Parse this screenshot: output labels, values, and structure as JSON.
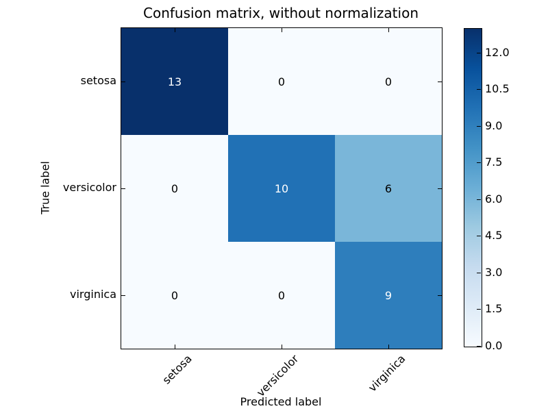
{
  "title": "Confusion matrix, without normalization",
  "axes": {
    "xlabel": "Predicted label",
    "ylabel": "True label",
    "x_tick_labels": [
      "setosa",
      "versicolor",
      "virginica"
    ],
    "y_tick_labels": [
      "setosa",
      "versicolor",
      "virginica"
    ]
  },
  "matrix": {
    "rows": [
      {
        "label": "setosa",
        "cells": [
          {
            "value": "13",
            "bg": "#08306b",
            "fg": "#ffffff"
          },
          {
            "value": "0",
            "bg": "#f7fbff",
            "fg": "#000000"
          },
          {
            "value": "0",
            "bg": "#f7fbff",
            "fg": "#000000"
          }
        ]
      },
      {
        "label": "versicolor",
        "cells": [
          {
            "value": "0",
            "bg": "#f7fbff",
            "fg": "#000000"
          },
          {
            "value": "10",
            "bg": "#2171b5",
            "fg": "#ffffff"
          },
          {
            "value": "6",
            "bg": "#7ab6d9",
            "fg": "#000000"
          }
        ]
      },
      {
        "label": "virginica",
        "cells": [
          {
            "value": "0",
            "bg": "#f7fbff",
            "fg": "#000000"
          },
          {
            "value": "0",
            "bg": "#f7fbff",
            "fg": "#000000"
          },
          {
            "value": "9",
            "bg": "#2e7ebc",
            "fg": "#ffffff"
          }
        ]
      }
    ]
  },
  "colorbar": {
    "min": 0,
    "max": 13,
    "tick_values": [
      0,
      1.5,
      3,
      4.5,
      6,
      7.5,
      9,
      10.5,
      12
    ],
    "tick_labels": [
      "0.0",
      "1.5",
      "3.0",
      "4.5",
      "6.0",
      "7.5",
      "9.0",
      "10.5",
      "12.0"
    ],
    "gradient_stops": [
      "#f7fbff",
      "#deebf7",
      "#c6dbef",
      "#9ecae1",
      "#6baed6",
      "#4292c6",
      "#2171b5",
      "#08519c",
      "#08306b"
    ]
  },
  "colors": {
    "spine": "#000000",
    "background": "#ffffff",
    "cmap_low": "#f7fbff",
    "cmap_high": "#08306b"
  },
  "chart_data": {
    "type": "heatmap",
    "title": "Confusion matrix, without normalization",
    "xlabel": "Predicted label",
    "ylabel": "True label",
    "x_categories": [
      "setosa",
      "versicolor",
      "virginica"
    ],
    "y_categories": [
      "setosa",
      "versicolor",
      "virginica"
    ],
    "values": [
      [
        13,
        0,
        0
      ],
      [
        0,
        10,
        6
      ],
      [
        0,
        0,
        9
      ]
    ],
    "value_range": [
      0,
      13
    ],
    "colormap": "Blues",
    "colorbar_ticks": [
      0.0,
      1.5,
      3.0,
      4.5,
      6.0,
      7.5,
      9.0,
      10.5,
      12.0
    ],
    "annotations": "cell values drawn at cell centers, white text above colormap midpoint, black below",
    "x_tick_rotation_deg": 45,
    "grid": false,
    "legend": "colorbar-right"
  }
}
